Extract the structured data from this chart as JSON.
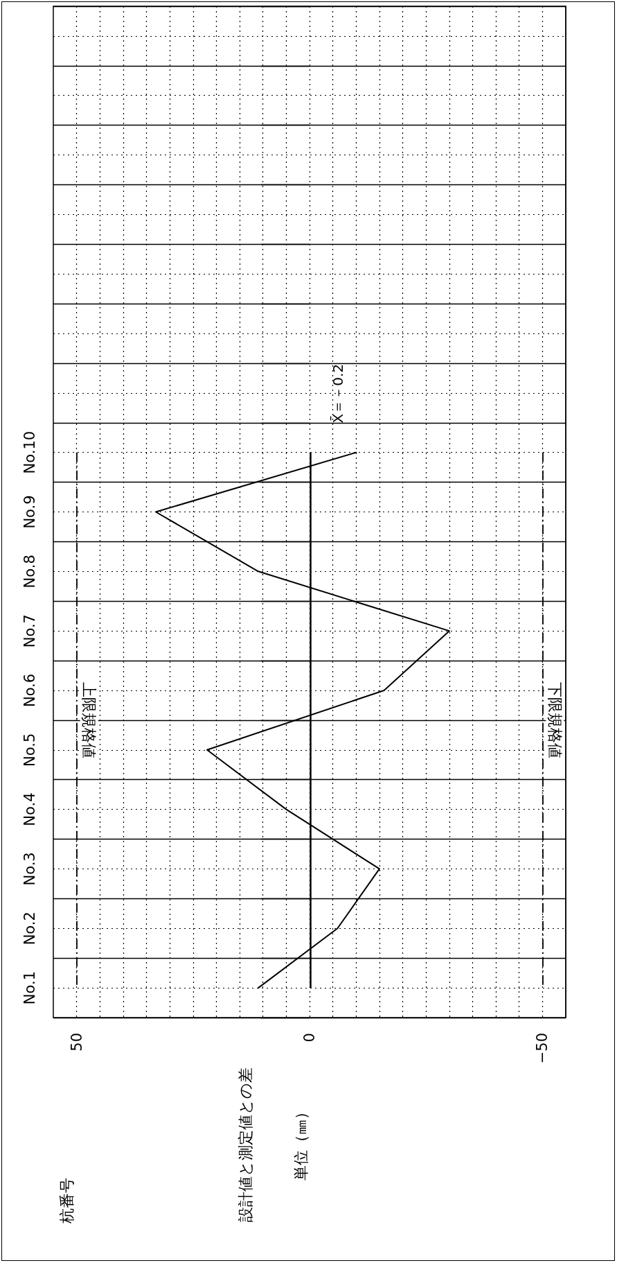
{
  "chart_data": {
    "type": "line",
    "orientation": "horizontal",
    "annotations": [
      "杭番号",
      "単位（㎜）",
      "設計値と測定値との差"
    ],
    "categories": [
      null,
      null,
      null,
      null,
      null,
      null,
      null,
      "No.10",
      "No.9",
      "No.8",
      "No.7",
      "No.6",
      "No.5",
      "No.4",
      "No.3",
      "No.2",
      "No.1"
    ],
    "values": [
      null,
      null,
      null,
      null,
      null,
      null,
      null,
      -10,
      33,
      11,
      -30,
      -16,
      22,
      5,
      -15,
      -6,
      11
    ],
    "color": "#000000",
    "marker": "none",
    "grid": true,
    "xlim": [
      55,
      -55
    ],
    "xticks": [
      50,
      {
        "value": 45,
        "label": null
      },
      {
        "value": 40,
        "label": null
      },
      {
        "value": 35,
        "label": null
      },
      {
        "value": 30,
        "label": null
      },
      {
        "value": 25,
        "label": null
      },
      {
        "value": 20,
        "label": null
      },
      {
        "value": 15,
        "label": null
      },
      {
        "value": 10,
        "label": null
      },
      {
        "value": 5,
        "label": null
      },
      0,
      {
        "value": -5,
        "label": null
      },
      {
        "value": -10,
        "label": null
      },
      {
        "value": -15,
        "label": null
      },
      {
        "value": -20,
        "label": null
      },
      {
        "value": -25,
        "label": null
      },
      {
        "value": -30,
        "label": null
      },
      {
        "value": -35,
        "label": null
      },
      {
        "value": -40,
        "label": null
      },
      {
        "value": -45,
        "label": null
      },
      {
        "value": -50,
        "label": "−50"
      }
    ],
    "ref_lines": [
      {
        "axis": "x",
        "value": 50,
        "label": "上限規格値",
        "line_style": "dashed",
        "color": "#000000"
      },
      {
        "axis": "x",
        "value": -50,
        "label": "下限規格値",
        "line_style": "dashed",
        "color": "#000000"
      },
      {
        "axis": "x",
        "value": -0.2,
        "label": "X̄＝－0.2",
        "line_style": "solid",
        "color": "#000000"
      }
    ]
  }
}
